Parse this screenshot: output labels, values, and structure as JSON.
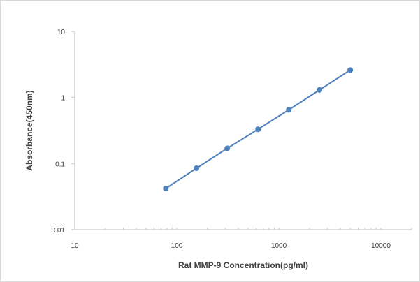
{
  "chart_data": {
    "type": "line",
    "title": "",
    "xlabel": "Rat  MMP-9 Concentration(pg/ml)",
    "ylabel": "Absorbance(450nm)",
    "x_scale": "log",
    "y_scale": "log",
    "xlim": [
      10,
      20000
    ],
    "ylim": [
      0.01,
      10
    ],
    "x_tick_labels": [
      "10",
      "100",
      "1000",
      "10000"
    ],
    "y_tick_labels": [
      "0.01",
      "0.1",
      "1",
      "10"
    ],
    "grid": false,
    "legend": "none",
    "series": [
      {
        "x": [
          78,
          156,
          312,
          625,
          1250,
          2500,
          5000
        ],
        "y": [
          0.042,
          0.085,
          0.17,
          0.33,
          0.65,
          1.3,
          2.6
        ],
        "color": "#4f81bd",
        "marker": "circle"
      }
    ]
  }
}
